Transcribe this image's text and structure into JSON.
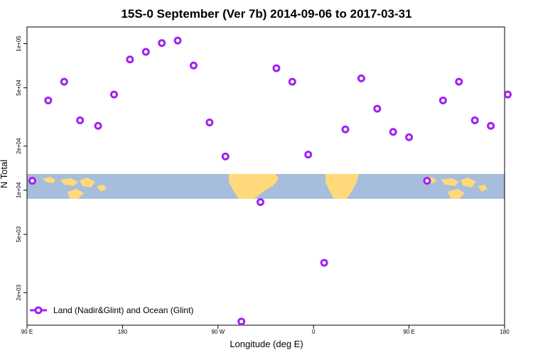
{
  "chart_data": {
    "type": "scatter",
    "title": "15S-0 September (Ver 7b)   2014-09-06 to 2017-03-31",
    "xlabel": "Longitude (deg E)",
    "ylabel": "N Total",
    "x_tick_labels": [
      "90 E",
      "180",
      "90 W",
      "0",
      "90 E",
      "180"
    ],
    "y_tick_labels": [
      "2e+03",
      "5e+03",
      "1e+04",
      "2e+04",
      "5e+04",
      "1e+05"
    ],
    "y_scale": "log",
    "ylim": [
      1200,
      130000
    ],
    "legend": {
      "label": "Land (Nadir&Glint) and Ocean (Glint)",
      "position": "bottom-left"
    },
    "series_color": "#a020f0",
    "map_colors": {
      "ocean": "#a6bddb",
      "land": "#ffd97a"
    },
    "series": [
      {
        "x": [
          95,
          110,
          125,
          140,
          157,
          172,
          187,
          202,
          217,
          232,
          247,
          262,
          277,
          292,
          310,
          325,
          340,
          355,
          370,
          390,
          405,
          420,
          435,
          450,
          467,
          482,
          497,
          512,
          527,
          543
        ],
        "y": [
          11600,
          41000,
          55000,
          30000,
          27500,
          45000,
          78000,
          88000,
          101000,
          105000,
          71000,
          29000,
          17000,
          1270,
          8300,
          68000,
          55000,
          17500,
          3200,
          26000,
          58000,
          36000,
          25000,
          23000,
          11600,
          41000,
          55000,
          30000,
          27500,
          45000
        ]
      }
    ]
  }
}
